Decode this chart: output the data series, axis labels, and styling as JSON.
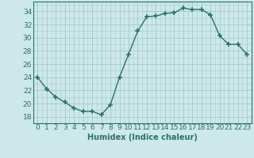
{
  "x": [
    0,
    1,
    2,
    3,
    4,
    5,
    6,
    7,
    8,
    9,
    10,
    11,
    12,
    13,
    14,
    15,
    16,
    17,
    18,
    19,
    20,
    21,
    22,
    23
  ],
  "y": [
    24.0,
    22.2,
    21.0,
    20.2,
    19.3,
    18.8,
    18.8,
    18.3,
    19.8,
    24.0,
    27.5,
    31.0,
    33.2,
    33.3,
    33.7,
    33.8,
    34.5,
    34.3,
    34.3,
    33.5,
    30.3,
    29.0,
    29.0,
    27.5
  ],
  "line_color": "#2d7070",
  "marker": "+",
  "marker_size": 4,
  "marker_lw": 1.2,
  "linewidth": 1.0,
  "linestyle": "-",
  "xlabel": "Humidex (Indice chaleur)",
  "ylabel_ticks": [
    18,
    20,
    22,
    24,
    26,
    28,
    30,
    32,
    34
  ],
  "ylim": [
    17.0,
    35.5
  ],
  "xlim": [
    -0.5,
    23.5
  ],
  "bg_color": "#cce8e8",
  "grid_color": "#aacccc",
  "label_fontsize": 7,
  "tick_fontsize": 6.5
}
